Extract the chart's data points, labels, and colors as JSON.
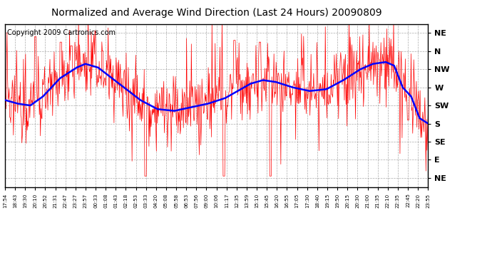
{
  "title": "Normalized and Average Wind Direction (Last 24 Hours) 20090809",
  "copyright": "Copyright 2009 Cartronics.com",
  "background_color": "#ffffff",
  "plot_bg_color": "#ffffff",
  "grid_color": "#888888",
  "y_labels": [
    "NE",
    "N",
    "NW",
    "W",
    "SW",
    "S",
    "SE",
    "E",
    "NE"
  ],
  "y_ticks": [
    8,
    7,
    6,
    5,
    4,
    3,
    2,
    1,
    0
  ],
  "x_labels": [
    "17:54",
    "18:43",
    "19:30",
    "20:10",
    "20:52",
    "21:31",
    "22:47",
    "23:27",
    "23:57",
    "00:33",
    "01:08",
    "01:43",
    "02:18",
    "02:53",
    "03:33",
    "04:20",
    "05:08",
    "05:58",
    "06:53",
    "07:56",
    "09:00",
    "10:06",
    "11:17",
    "12:35",
    "13:59",
    "15:10",
    "15:45",
    "16:20",
    "16:55",
    "17:05",
    "17:30",
    "18:40",
    "19:15",
    "19:50",
    "20:15",
    "20:30",
    "21:00",
    "21:35",
    "22:10",
    "22:35",
    "22:45",
    "22:20",
    "23:55"
  ],
  "red_line_color": "#ff0000",
  "blue_line_color": "#0000ff",
  "title_fontsize": 10,
  "copyright_fontsize": 7,
  "blue_keypoints_t": [
    0,
    0.03,
    0.06,
    0.09,
    0.13,
    0.17,
    0.19,
    0.22,
    0.27,
    0.32,
    0.36,
    0.4,
    0.44,
    0.48,
    0.52,
    0.55,
    0.58,
    0.61,
    0.64,
    0.68,
    0.72,
    0.76,
    0.8,
    0.84,
    0.87,
    0.9,
    0.92,
    0.94,
    0.96,
    0.98,
    1.0
  ],
  "blue_keypoints_v": [
    4.3,
    4.1,
    4.0,
    4.5,
    5.5,
    6.1,
    6.3,
    6.1,
    5.2,
    4.3,
    3.8,
    3.7,
    3.9,
    4.1,
    4.4,
    4.8,
    5.2,
    5.4,
    5.3,
    5.0,
    4.8,
    4.9,
    5.4,
    6.0,
    6.3,
    6.4,
    6.2,
    5.0,
    4.5,
    3.3,
    3.0
  ]
}
